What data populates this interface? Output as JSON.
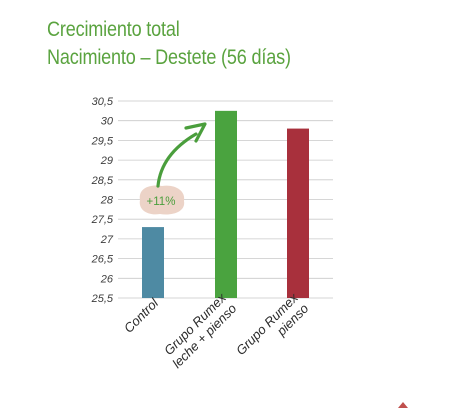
{
  "chart_data": {
    "type": "bar",
    "title_line1": "Crecimiento total",
    "title_line2": "Nacimiento – Destete (56 días)",
    "xlabel": "",
    "ylabel": "",
    "ylim": [
      25.5,
      30.5
    ],
    "yticks": [
      "30,5",
      "30",
      "29,5",
      "29",
      "28,5",
      "28",
      "27,5",
      "27",
      "26,5",
      "26",
      "25,5"
    ],
    "ytick_values": [
      30.5,
      30,
      29.5,
      29,
      28.5,
      28,
      27.5,
      27,
      26.5,
      26,
      25.5
    ],
    "grid": true,
    "categories": [
      [
        "Control"
      ],
      [
        "Grupo Rumex",
        "leche + pienso"
      ],
      [
        "Grupo Rumex",
        "pienso"
      ]
    ],
    "values": [
      27.3,
      30.25,
      29.8
    ],
    "colors": [
      "#4e8aa3",
      "#4aa33f",
      "#a8303c"
    ],
    "annotation": {
      "text": "+11%",
      "color": "#4a9e3c",
      "bubble_color": "#ecd3c7"
    }
  }
}
